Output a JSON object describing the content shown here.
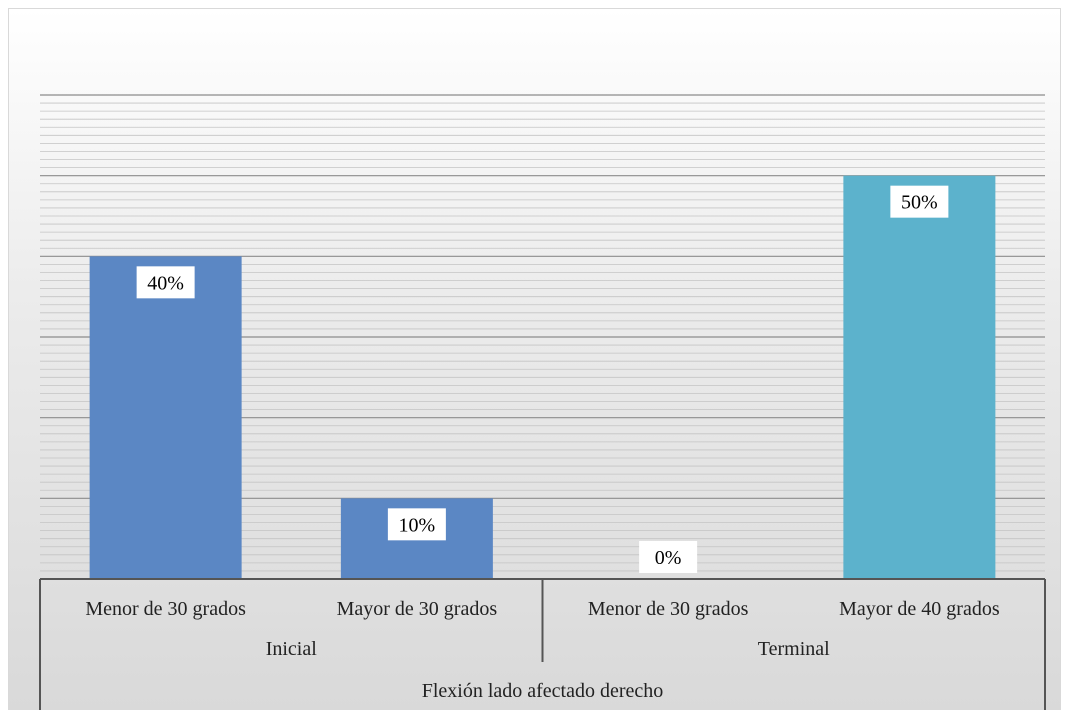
{
  "chart_data": {
    "type": "bar",
    "title": "",
    "ylabel": "",
    "ylim": [
      0,
      0.6
    ],
    "grid": true,
    "series": [
      {
        "values": [
          0.4,
          0.1,
          0.0,
          0.5
        ],
        "labels": [
          "40%",
          "10%",
          "0%",
          "50%"
        ],
        "colors": [
          "#5b87c4",
          "#5b87c4",
          "#5b87c4",
          "#5cb2cc"
        ]
      }
    ],
    "categories": [
      "Menor de 30 grados",
      "Mayor de 30 grados",
      "Menor de 30 grados",
      "Mayor de 40 grados"
    ],
    "groups": [
      {
        "label": "Inicial",
        "span": [
          0,
          1
        ]
      },
      {
        "label": "Terminal",
        "span": [
          2,
          3
        ]
      }
    ],
    "xlabel": "Flexión lado afectado derecho"
  }
}
